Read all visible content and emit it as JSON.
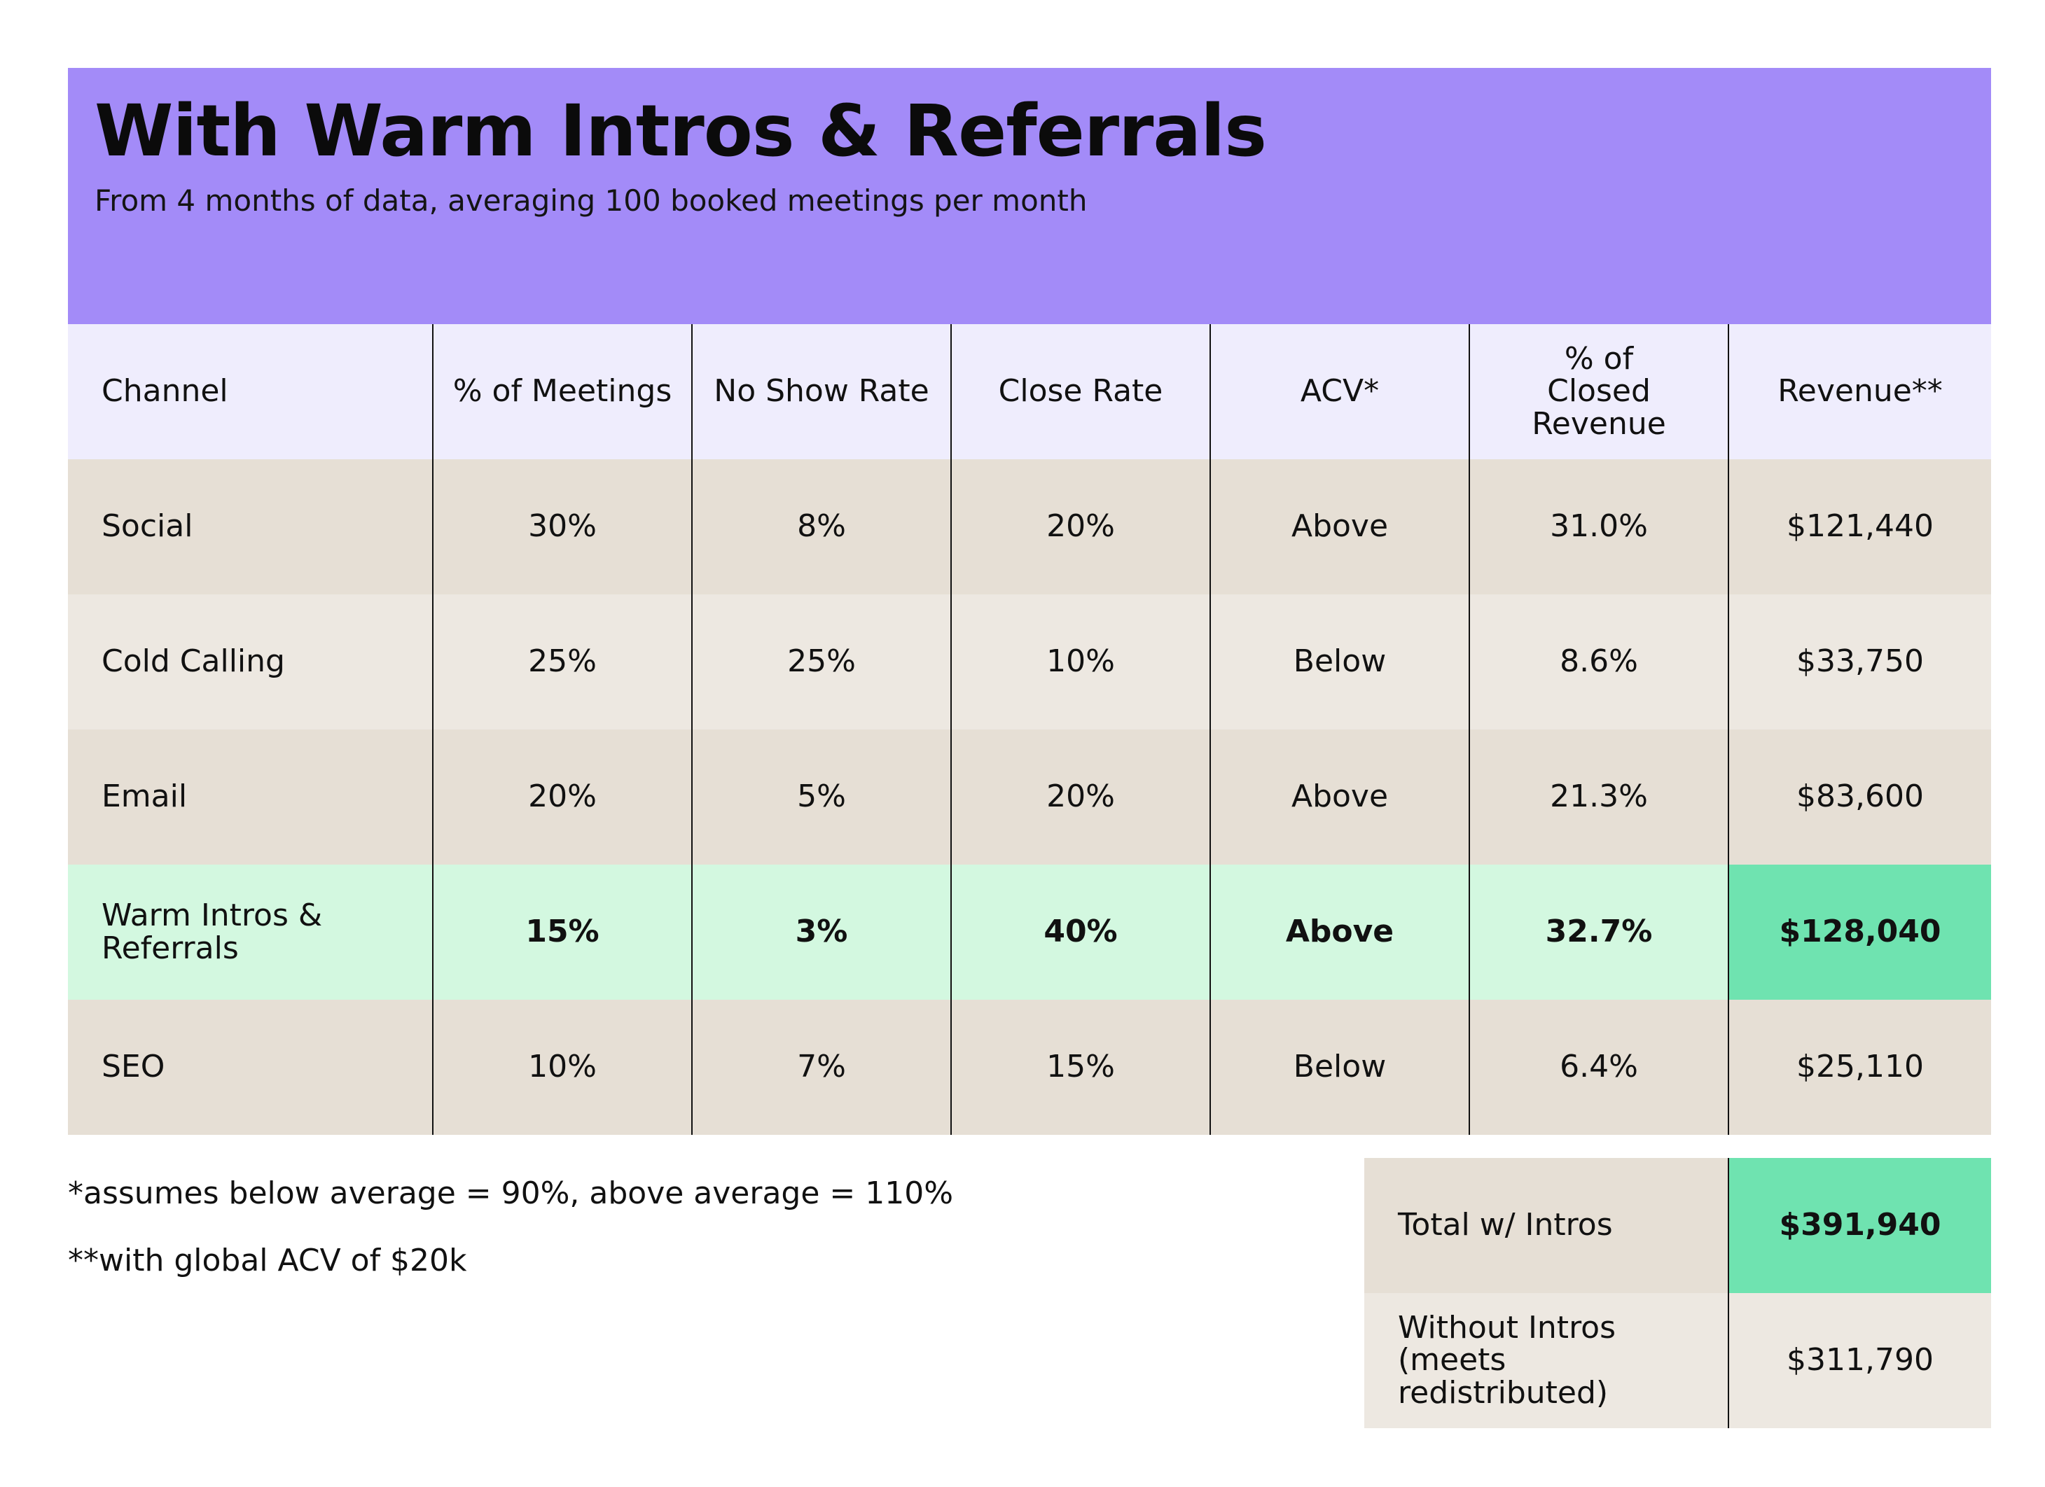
{
  "header": {
    "title": "With Warm Intros & Referrals",
    "subtitle": "From 4 months of data, averaging 100 booked meetings per month",
    "background_color": "#a38bf8"
  },
  "table": {
    "columns": [
      "Channel",
      "% of Meetings",
      "No Show Rate",
      "Close Rate",
      "ACV*",
      "% of Closed Revenue",
      "Revenue**"
    ],
    "rows": [
      {
        "channel": "Social",
        "meetings": "30%",
        "no_show": "8%",
        "close_rate": "20%",
        "acv": "Above",
        "closed_revenue": "31.0%",
        "revenue": "$121,440"
      },
      {
        "channel": "Cold Calling",
        "meetings": "25%",
        "no_show": "25%",
        "close_rate": "10%",
        "acv": "Below",
        "closed_revenue": "8.6%",
        "revenue": "$33,750"
      },
      {
        "channel": "Email",
        "meetings": "20%",
        "no_show": "5%",
        "close_rate": "20%",
        "acv": "Above",
        "closed_revenue": "21.3%",
        "revenue": "$83,600"
      },
      {
        "channel": "Warm Intros & Referrals",
        "meetings": "15%",
        "no_show": "3%",
        "close_rate": "40%",
        "acv": "Above",
        "closed_revenue": "32.7%",
        "revenue": "$128,040",
        "highlighted": true
      },
      {
        "channel": "SEO",
        "meetings": "10%",
        "no_show": "7%",
        "close_rate": "15%",
        "acv": "Below",
        "closed_revenue": "6.4%",
        "revenue": "$25,110"
      }
    ],
    "colors": {
      "header_row": "#efedfd",
      "row_shade_a": "#e6dfd5",
      "row_shade_b": "#ede8e1",
      "highlight_row": "#d3f8e0",
      "highlight_revenue": "#6fe3b0"
    }
  },
  "notes": [
    "*assumes below average = 90%, above average = 110%",
    "**with global ACV of $20k"
  ],
  "totals": [
    {
      "label": "Total w/ Intros",
      "value": "$391,940"
    },
    {
      "label": "Without Intros (meets redistributed)",
      "value": "$311,790"
    }
  ]
}
